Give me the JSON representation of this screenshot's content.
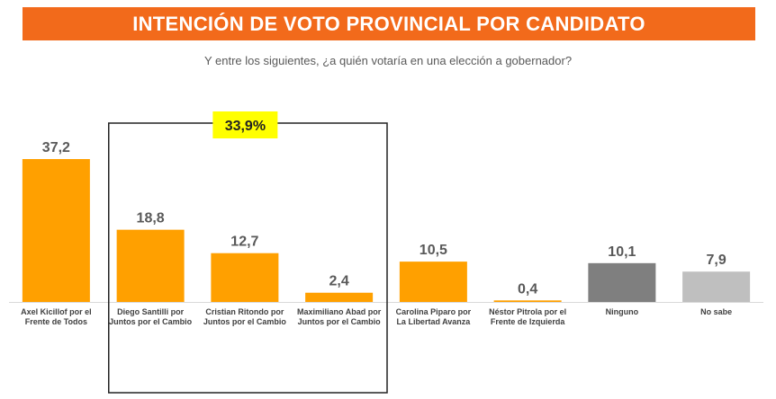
{
  "header": {
    "title": "INTENCIÓN DE VOTO PROVINCIAL POR CANDIDATO",
    "subtitle": "Y entre los siguientes, ¿a quién votaría en una elección a gobernador?"
  },
  "colors": {
    "title_bg": "#f26a1b",
    "orange": "#ffa000",
    "dark_gray": "#7f7f7f",
    "light_gray": "#bfbfbf",
    "highlight": "#ffff00"
  },
  "highlight": {
    "label": "33,9%",
    "group_from": 1,
    "group_to": 3
  },
  "chart_data": {
    "type": "bar",
    "categories": [
      [
        "Axel Kicillof por el",
        "Frente de Todos"
      ],
      [
        "Diego Santilli por",
        "Juntos por el Cambio"
      ],
      [
        "Cristian Ritondo por",
        "Juntos por el Cambio"
      ],
      [
        "Maximiliano Abad por",
        "Juntos por el Cambio"
      ],
      [
        "Carolina Piparo por",
        "La Libertad Avanza"
      ],
      [
        "Néstor Pitrola por el",
        "Frente de Izquierda"
      ],
      [
        "Ninguno"
      ],
      [
        "No sabe"
      ]
    ],
    "values": [
      37.2,
      18.8,
      12.7,
      2.4,
      10.5,
      0.4,
      10.1,
      7.9
    ],
    "value_labels": [
      "37,2",
      "18,8",
      "12,7",
      "2,4",
      "10,5",
      "0,4",
      "10,1",
      "7,9"
    ],
    "bar_colors": [
      "#ffa000",
      "#ffa000",
      "#ffa000",
      "#ffa000",
      "#ffa000",
      "#ffa000",
      "#7f7f7f",
      "#bfbfbf"
    ],
    "ylim": [
      0,
      37.2
    ],
    "grid": false,
    "legend": "none"
  }
}
